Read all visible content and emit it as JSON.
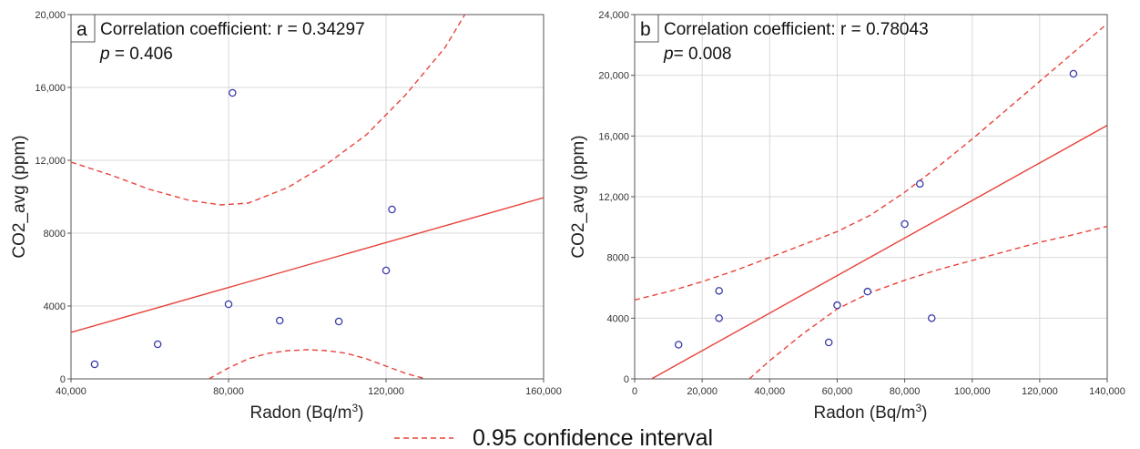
{
  "chart_data": [
    {
      "type": "scatter",
      "panel_letter": "a",
      "xlabel": "Radon (Bq/m",
      "xlabel_sup": "3",
      "xlabel_end": ")",
      "ylabel": "CO2_avg (ppm)",
      "xlim": [
        40000,
        160000
      ],
      "ylim": [
        0,
        20000
      ],
      "x_ticks": [
        40000,
        80000,
        120000,
        160000
      ],
      "x_tick_labels": [
        "40,000",
        "80,000",
        "120,000",
        "160,000"
      ],
      "y_ticks": [
        0,
        4000,
        8000,
        12000,
        16000,
        20000
      ],
      "y_tick_labels": [
        "0",
        "4000",
        "8000",
        "12,000",
        "16,000",
        "20,000"
      ],
      "grid": true,
      "annotation_line1": "Correlation coefficient: r = 0.34297",
      "annotation_p": "p",
      "annotation_p_value": " = 0.406",
      "points": [
        [
          46000,
          800
        ],
        [
          62000,
          1900
        ],
        [
          80000,
          4100
        ],
        [
          81000,
          15700
        ],
        [
          93000,
          3200
        ],
        [
          108000,
          3150
        ],
        [
          120000,
          5950
        ],
        [
          121500,
          9300
        ]
      ],
      "fit_line": [
        [
          40000,
          2550
        ],
        [
          160000,
          9950
        ]
      ],
      "ci_upper": [
        [
          40000,
          11900
        ],
        [
          50000,
          11200
        ],
        [
          60000,
          10400
        ],
        [
          70000,
          9800
        ],
        [
          78000,
          9550
        ],
        [
          85000,
          9650
        ],
        [
          95000,
          10500
        ],
        [
          105000,
          11800
        ],
        [
          115000,
          13400
        ],
        [
          125000,
          15600
        ],
        [
          135000,
          18200
        ],
        [
          140000,
          20000
        ]
      ],
      "ci_lower": [
        [
          75000,
          0
        ],
        [
          80000,
          600
        ],
        [
          85000,
          1100
        ],
        [
          90000,
          1400
        ],
        [
          95000,
          1550
        ],
        [
          100000,
          1600
        ],
        [
          105000,
          1550
        ],
        [
          110000,
          1400
        ],
        [
          115000,
          1100
        ],
        [
          120000,
          700
        ],
        [
          125000,
          300
        ],
        [
          130000,
          0
        ]
      ]
    },
    {
      "type": "scatter",
      "panel_letter": "b",
      "xlabel": "Radon (Bq/m",
      "xlabel_sup": "3",
      "xlabel_end": ")",
      "ylabel": "CO2_avg (ppm)",
      "xlim": [
        0,
        140000
      ],
      "ylim": [
        0,
        24000
      ],
      "x_ticks": [
        0,
        20000,
        40000,
        60000,
        80000,
        100000,
        120000,
        140000
      ],
      "x_tick_labels": [
        "0",
        "20,000",
        "40,000",
        "60,000",
        "80,000",
        "100,000",
        "120,000",
        "140,000"
      ],
      "y_ticks": [
        0,
        4000,
        8000,
        12000,
        16000,
        20000,
        24000
      ],
      "y_tick_labels": [
        "0",
        "4000",
        "8000",
        "12,000",
        "16,000",
        "20,000",
        "24,000"
      ],
      "grid": true,
      "annotation_line1": "Correlation coefficient: r = 0.78043",
      "annotation_p": "p",
      "annotation_p_value": "= 0.008",
      "points": [
        [
          13000,
          2250
        ],
        [
          25000,
          4000
        ],
        [
          25000,
          5800
        ],
        [
          57500,
          2400
        ],
        [
          60000,
          4850
        ],
        [
          69000,
          5750
        ],
        [
          80000,
          10200
        ],
        [
          84500,
          12850
        ],
        [
          88000,
          4000
        ],
        [
          130000,
          20100
        ]
      ],
      "fit_line": [
        [
          5000,
          0
        ],
        [
          140000,
          16700
        ]
      ],
      "ci_upper": [
        [
          0,
          5200
        ],
        [
          10000,
          5750
        ],
        [
          20000,
          6400
        ],
        [
          30000,
          7150
        ],
        [
          40000,
          8000
        ],
        [
          50000,
          8850
        ],
        [
          60000,
          9700
        ],
        [
          70000,
          10800
        ],
        [
          80000,
          12300
        ],
        [
          90000,
          14000
        ],
        [
          100000,
          15800
        ],
        [
          110000,
          17700
        ],
        [
          120000,
          19600
        ],
        [
          130000,
          21500
        ],
        [
          140000,
          23400
        ]
      ],
      "ci_lower": [
        [
          34000,
          0
        ],
        [
          40000,
          1200
        ],
        [
          50000,
          3000
        ],
        [
          60000,
          4600
        ],
        [
          70000,
          5700
        ],
        [
          80000,
          6500
        ],
        [
          90000,
          7200
        ],
        [
          100000,
          7800
        ],
        [
          110000,
          8400
        ],
        [
          120000,
          9000
        ],
        [
          130000,
          9500
        ],
        [
          140000,
          10050
        ]
      ]
    }
  ],
  "legend": {
    "label": "0.95 confidence interval"
  },
  "colors": {
    "fit_line": "#e8433c",
    "ci_line": "#e8433c",
    "points": "#3a3aa8",
    "grid": "#d9d9d9",
    "axis": "#555555"
  }
}
